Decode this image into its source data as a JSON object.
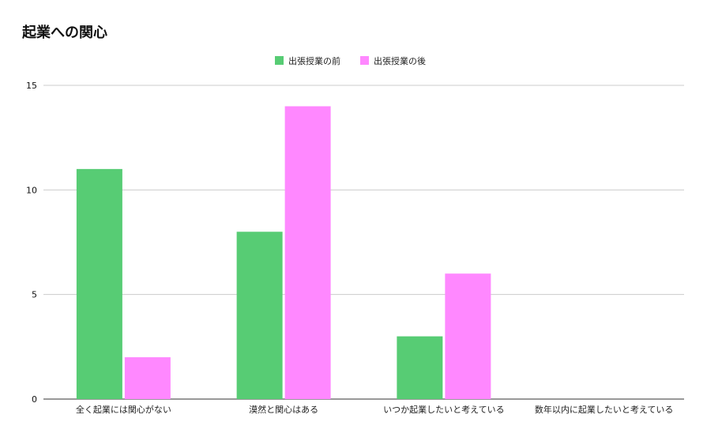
{
  "chart_data": {
    "type": "bar",
    "title": "起業への関心",
    "xlabel": "",
    "ylabel": "",
    "categories": [
      "全く起業には関心がない",
      "漠然と関心はある",
      "いつか起業したいと考えている",
      "数年以内に起業したいと考えている"
    ],
    "series": [
      {
        "name": "出張授業の前",
        "values": [
          11,
          8,
          3,
          0
        ],
        "color": "#57cc74"
      },
      {
        "name": "出張授業の後",
        "values": [
          2,
          14,
          6,
          0
        ],
        "color": "#ff88ff"
      }
    ],
    "ylim": [
      0,
      15
    ],
    "yticks": [
      0,
      5,
      10,
      15
    ],
    "grid": true,
    "legend_position": "top-center"
  }
}
